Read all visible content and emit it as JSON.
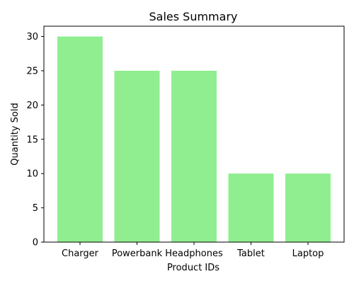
{
  "chart_data": {
    "type": "bar",
    "title": "Sales Summary",
    "xlabel": "Product IDs",
    "ylabel": "Quantity Sold",
    "categories": [
      "Charger",
      "Powerbank",
      "Headphones",
      "Tablet",
      "Laptop"
    ],
    "values": [
      30,
      25,
      25,
      10,
      10
    ],
    "ylim": [
      0,
      31.5
    ],
    "yticks": [
      0,
      5,
      10,
      15,
      20,
      25,
      30
    ],
    "bar_color": "#90ee90",
    "grid": false,
    "legend": "none"
  }
}
